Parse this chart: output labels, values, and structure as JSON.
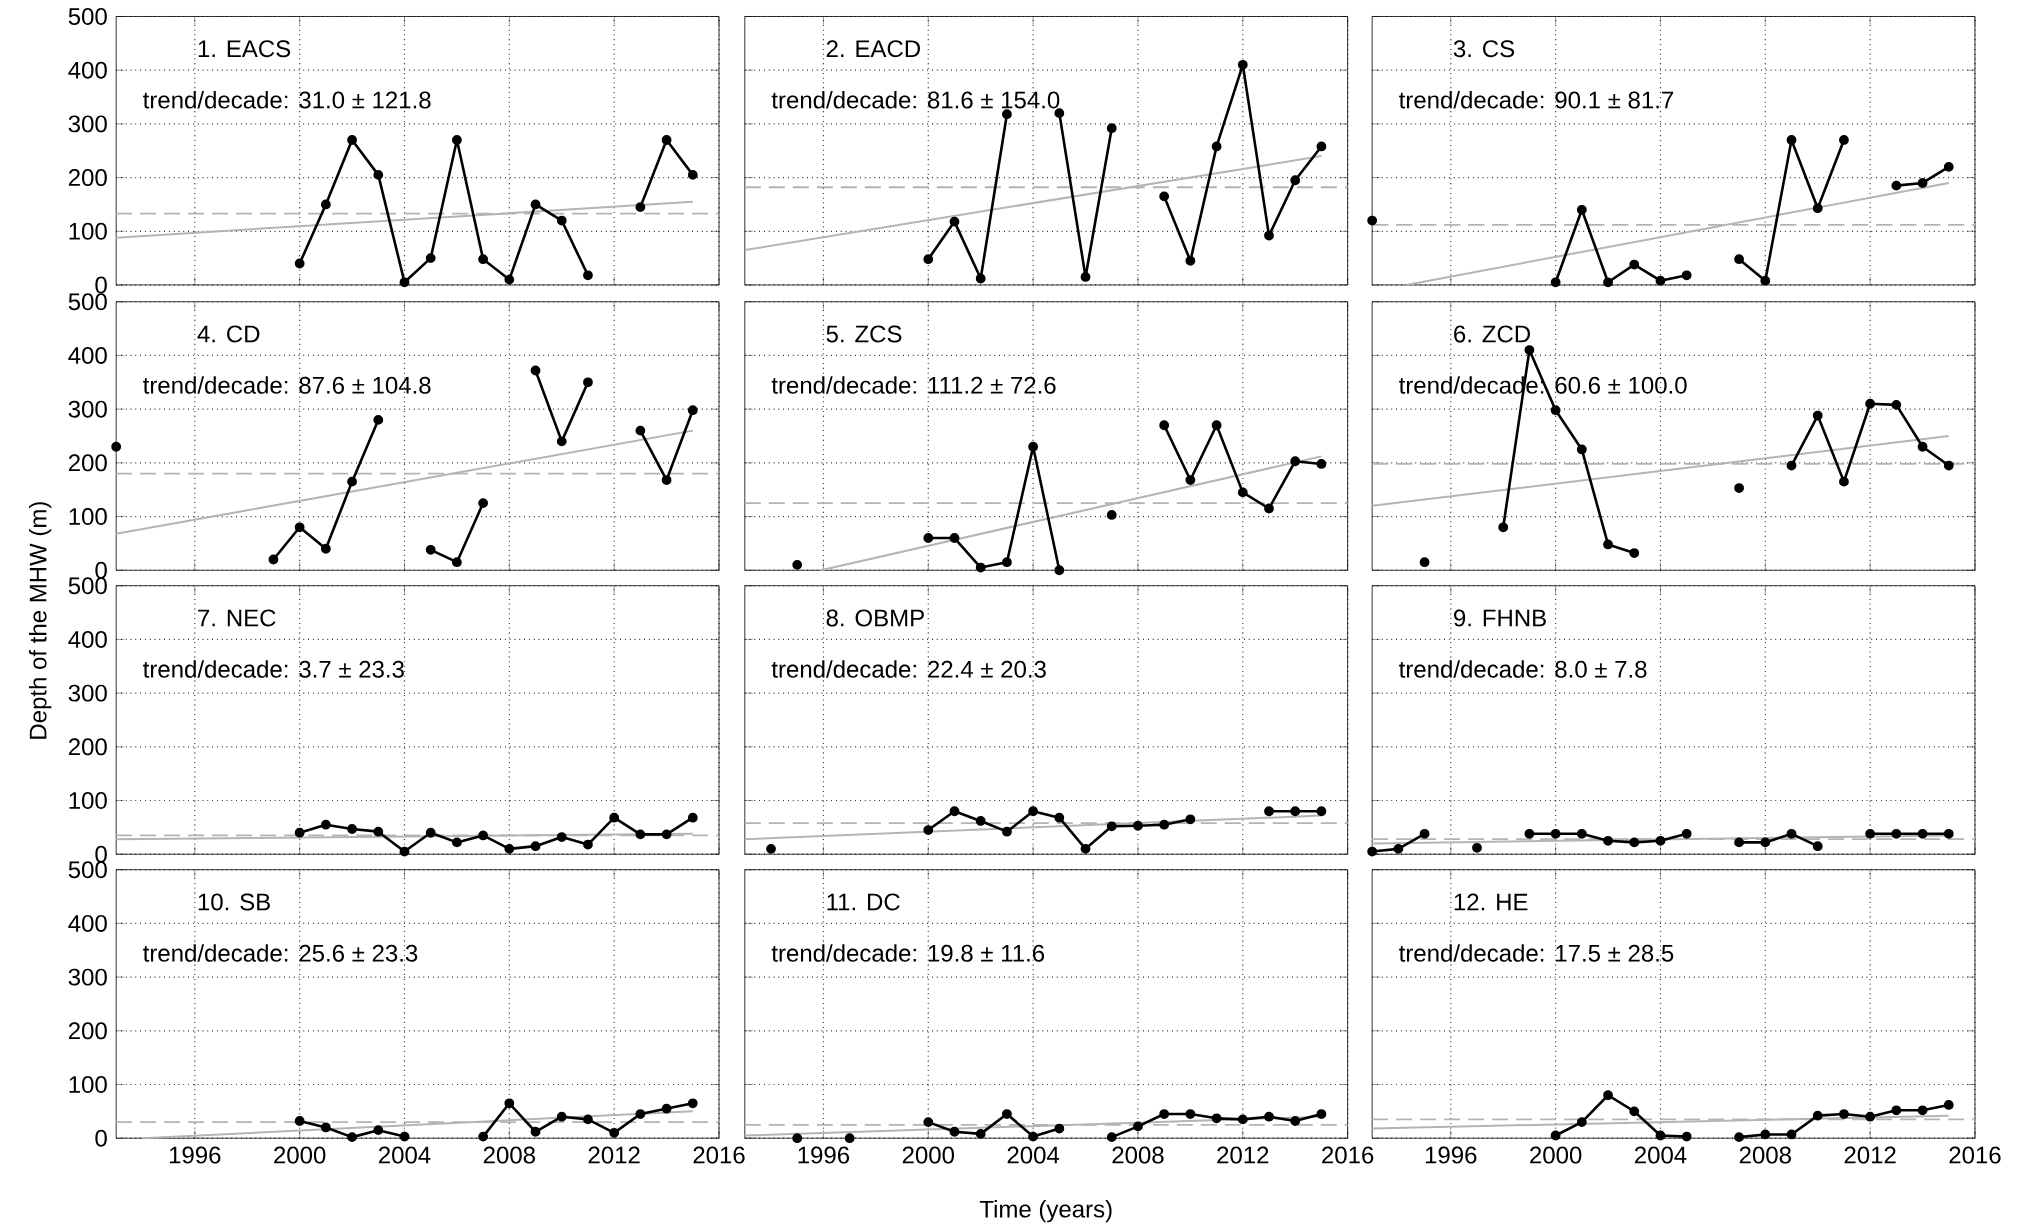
{
  "chart_data": [
    {
      "type": "line",
      "annotations": [
        "1. EACS",
        "trend/decade: 31.0 ± 121.8"
      ],
      "series": [
        {
          "color": "#000000",
          "x": [
            2000,
            2001,
            2002,
            2003,
            2004,
            2005,
            2006,
            2007,
            2008,
            2009,
            2010,
            2011,
            2012,
            2013,
            2014,
            2015
          ],
          "values": [
            40,
            150,
            270,
            205,
            5,
            50,
            270,
            48,
            10,
            150,
            120,
            18,
            null,
            145,
            270,
            205
          ]
        },
        {
          "type": "line",
          "marker": "none",
          "color": "#b4b4b4",
          "x": [
            1993,
            2015
          ],
          "values": [
            88,
            155
          ]
        }
      ],
      "ref_lines": [
        {
          "axis": "y",
          "value": 133,
          "color": "#b4b4b4",
          "line_style": "dashed"
        }
      ],
      "xlim": [
        1993,
        2016
      ],
      "ylim": [
        0,
        500
      ],
      "xticks": [
        1996,
        2000,
        2004,
        2008,
        2012,
        2016
      ],
      "yticks": [
        0,
        100,
        200,
        300,
        400,
        500
      ],
      "grid": true,
      "marker": "circle",
      "tick_labels": "y"
    },
    {
      "type": "line",
      "annotations": [
        "2. EACD",
        "trend/decade: 81.6 ± 154.0"
      ],
      "series": [
        {
          "color": "#000000",
          "x": [
            2000,
            2001,
            2002,
            2003,
            2004,
            2005,
            2006,
            2007,
            2008,
            2009,
            2010,
            2011,
            2012,
            2013,
            2014,
            2015
          ],
          "values": [
            48,
            118,
            12,
            318,
            null,
            320,
            15,
            292,
            null,
            165,
            45,
            258,
            410,
            92,
            195,
            258
          ]
        },
        {
          "type": "line",
          "marker": "none",
          "color": "#b4b4b4",
          "x": [
            1993,
            2015
          ],
          "values": [
            65,
            240
          ]
        }
      ],
      "ref_lines": [
        {
          "axis": "y",
          "value": 182,
          "color": "#b4b4b4",
          "line_style": "dashed"
        }
      ],
      "xlim": [
        1993,
        2016
      ],
      "ylim": [
        0,
        500
      ],
      "xticks": [
        1996,
        2000,
        2004,
        2008,
        2012,
        2016
      ],
      "yticks": [
        0,
        100,
        200,
        300,
        400,
        500
      ],
      "grid": true,
      "marker": "circle",
      "tick_labels": false
    },
    {
      "type": "line",
      "annotations": [
        "3. CS",
        "trend/decade: 90.1 ± 81.7"
      ],
      "series": [
        {
          "color": "#000000",
          "x": [
            1993,
            1999,
            2000,
            2001,
            2002,
            2003,
            2004,
            2005,
            2006,
            2007,
            2008,
            2009,
            2010,
            2011,
            2012,
            2013,
            2014,
            2015
          ],
          "values": [
            120,
            null,
            5,
            140,
            5,
            38,
            8,
            18,
            null,
            48,
            8,
            270,
            143,
            270,
            null,
            185,
            190,
            220
          ]
        },
        {
          "type": "line",
          "marker": "none",
          "color": "#b4b4b4",
          "x": [
            1994.3,
            2015
          ],
          "values": [
            0,
            190
          ]
        }
      ],
      "ref_lines": [
        {
          "axis": "y",
          "value": 112,
          "color": "#b4b4b4",
          "line_style": "dashed"
        }
      ],
      "xlim": [
        1993,
        2016
      ],
      "ylim": [
        0,
        500
      ],
      "xticks": [
        1996,
        2000,
        2004,
        2008,
        2012,
        2016
      ],
      "yticks": [
        0,
        100,
        200,
        300,
        400,
        500
      ],
      "grid": true,
      "marker": "circle",
      "tick_labels": false
    },
    {
      "type": "line",
      "annotations": [
        "4. CD",
        "trend/decade: 87.6 ± 104.8"
      ],
      "series": [
        {
          "color": "#000000",
          "x": [
            1993,
            1998,
            1999,
            2000,
            2001,
            2002,
            2003,
            2004,
            2005,
            2006,
            2007,
            2008,
            2009,
            2010,
            2011,
            2012,
            2013,
            2014,
            2015
          ],
          "values": [
            230,
            null,
            20,
            80,
            40,
            165,
            280,
            null,
            38,
            15,
            125,
            null,
            372,
            240,
            350,
            null,
            260,
            168,
            298
          ]
        },
        {
          "type": "line",
          "marker": "none",
          "color": "#b4b4b4",
          "x": [
            1993,
            2015
          ],
          "values": [
            68,
            260
          ]
        }
      ],
      "ref_lines": [
        {
          "axis": "y",
          "value": 180,
          "color": "#b4b4b4",
          "line_style": "dashed"
        }
      ],
      "xlim": [
        1993,
        2016
      ],
      "ylim": [
        0,
        500
      ],
      "xticks": [
        1996,
        2000,
        2004,
        2008,
        2012,
        2016
      ],
      "yticks": [
        0,
        100,
        200,
        300,
        400,
        500
      ],
      "grid": true,
      "marker": "circle",
      "tick_labels": "y"
    },
    {
      "type": "line",
      "annotations": [
        "5. ZCS",
        "trend/decade: 111.2 ± 72.6"
      ],
      "series": [
        {
          "color": "#000000",
          "x": [
            1995,
            1999,
            2000,
            2001,
            2002,
            2003,
            2004,
            2005,
            2006,
            2007,
            2008,
            2009,
            2010,
            2011,
            2012,
            2013,
            2014,
            2015
          ],
          "values": [
            10,
            null,
            60,
            60,
            5,
            15,
            230,
            0,
            null,
            103,
            null,
            270,
            168,
            270,
            145,
            115,
            203,
            198
          ]
        },
        {
          "type": "line",
          "marker": "none",
          "color": "#b4b4b4",
          "x": [
            1995.9,
            2015
          ],
          "values": [
            0,
            212
          ]
        }
      ],
      "ref_lines": [
        {
          "axis": "y",
          "value": 125,
          "color": "#b4b4b4",
          "line_style": "dashed"
        }
      ],
      "xlim": [
        1993,
        2016
      ],
      "ylim": [
        0,
        500
      ],
      "xticks": [
        1996,
        2000,
        2004,
        2008,
        2012,
        2016
      ],
      "yticks": [
        0,
        100,
        200,
        300,
        400,
        500
      ],
      "grid": true,
      "marker": "circle",
      "tick_labels": false
    },
    {
      "type": "line",
      "annotations": [
        "6. ZCD",
        "trend/decade: 60.6 ± 100.0"
      ],
      "series": [
        {
          "color": "#000000",
          "x": [
            1995,
            1997,
            1998,
            1999,
            2000,
            2001,
            2002,
            2003,
            2004,
            2007,
            2008,
            2009,
            2010,
            2011,
            2012,
            2013,
            2014,
            2015
          ],
          "values": [
            15,
            null,
            80,
            410,
            298,
            225,
            48,
            32,
            null,
            153,
            null,
            195,
            288,
            165,
            310,
            308,
            230,
            195
          ]
        },
        {
          "type": "line",
          "marker": "none",
          "color": "#b4b4b4",
          "x": [
            1993,
            2015
          ],
          "values": [
            120,
            250
          ]
        }
      ],
      "ref_lines": [
        {
          "axis": "y",
          "value": 198,
          "color": "#b4b4b4",
          "line_style": "dashed"
        }
      ],
      "xlim": [
        1993,
        2016
      ],
      "ylim": [
        0,
        500
      ],
      "xticks": [
        1996,
        2000,
        2004,
        2008,
        2012,
        2016
      ],
      "yticks": [
        0,
        100,
        200,
        300,
        400,
        500
      ],
      "grid": true,
      "marker": "circle",
      "tick_labels": false
    },
    {
      "type": "line",
      "annotations": [
        "7. NEC",
        "trend/decade: 3.7 ± 23.3"
      ],
      "ylabel": "Depth of the MHW (m)",
      "series": [
        {
          "color": "#000000",
          "x": [
            2000,
            2001,
            2002,
            2003,
            2004,
            2005,
            2006,
            2007,
            2008,
            2009,
            2010,
            2011,
            2012,
            2013,
            2014,
            2015
          ],
          "values": [
            40,
            55,
            47,
            42,
            5,
            40,
            22,
            35,
            10,
            15,
            32,
            18,
            68,
            37,
            37,
            68
          ]
        },
        {
          "type": "line",
          "marker": "none",
          "color": "#b4b4b4",
          "x": [
            1993,
            2015
          ],
          "values": [
            28,
            38
          ]
        }
      ],
      "ref_lines": [
        {
          "axis": "y",
          "value": 35,
          "color": "#b4b4b4",
          "line_style": "dashed"
        }
      ],
      "xlim": [
        1993,
        2016
      ],
      "ylim": [
        0,
        500
      ],
      "xticks": [
        1996,
        2000,
        2004,
        2008,
        2012,
        2016
      ],
      "yticks": [
        0,
        100,
        200,
        300,
        400,
        500
      ],
      "grid": true,
      "marker": "circle",
      "tick_labels": "y"
    },
    {
      "type": "line",
      "annotations": [
        "8. OBMP",
        "trend/decade: 22.4 ± 20.3"
      ],
      "series": [
        {
          "color": "#000000",
          "x": [
            1994,
            1999,
            2000,
            2001,
            2002,
            2003,
            2004,
            2005,
            2006,
            2007,
            2008,
            2009,
            2010,
            2011,
            2013,
            2014,
            2015
          ],
          "values": [
            10,
            null,
            45,
            80,
            62,
            42,
            80,
            68,
            10,
            52,
            53,
            55,
            65,
            null,
            80,
            80,
            80
          ]
        },
        {
          "type": "line",
          "marker": "none",
          "color": "#b4b4b4",
          "x": [
            1993,
            2015
          ],
          "values": [
            28,
            72
          ]
        }
      ],
      "ref_lines": [
        {
          "axis": "y",
          "value": 58,
          "color": "#b4b4b4",
          "line_style": "dashed"
        }
      ],
      "xlim": [
        1993,
        2016
      ],
      "ylim": [
        0,
        500
      ],
      "xticks": [
        1996,
        2000,
        2004,
        2008,
        2012,
        2016
      ],
      "yticks": [
        0,
        100,
        200,
        300,
        400,
        500
      ],
      "grid": true,
      "marker": "circle",
      "tick_labels": false
    },
    {
      "type": "line",
      "annotations": [
        "9. FHNB",
        "trend/decade: 8.0 ± 7.8"
      ],
      "series": [
        {
          "color": "#000000",
          "x": [
            1993,
            1994,
            1995,
            1996,
            1997,
            1998,
            1999,
            2000,
            2001,
            2002,
            2003,
            2004,
            2005,
            2006,
            2007,
            2008,
            2009,
            2010,
            2011,
            2012,
            2013,
            2014,
            2015
          ],
          "values": [
            5,
            10,
            38,
            null,
            12,
            null,
            38,
            38,
            38,
            25,
            22,
            25,
            38,
            null,
            22,
            22,
            38,
            15,
            null,
            38,
            38,
            38,
            38
          ]
        },
        {
          "type": "line",
          "marker": "none",
          "color": "#b4b4b4",
          "x": [
            1993,
            2015
          ],
          "values": [
            20,
            35
          ]
        }
      ],
      "ref_lines": [
        {
          "axis": "y",
          "value": 28,
          "color": "#b4b4b4",
          "line_style": "dashed"
        }
      ],
      "xlim": [
        1993,
        2016
      ],
      "ylim": [
        0,
        500
      ],
      "xticks": [
        1996,
        2000,
        2004,
        2008,
        2012,
        2016
      ],
      "yticks": [
        0,
        100,
        200,
        300,
        400,
        500
      ],
      "grid": true,
      "marker": "circle",
      "tick_labels": false
    },
    {
      "type": "line",
      "annotations": [
        "10. SB",
        "trend/decade: 25.6 ± 23.3"
      ],
      "series": [
        {
          "color": "#000000",
          "x": [
            2000,
            2001,
            2002,
            2003,
            2004,
            2005,
            2007,
            2008,
            2009,
            2010,
            2011,
            2012,
            2013,
            2014,
            2015
          ],
          "values": [
            32,
            20,
            2,
            15,
            3,
            null,
            3,
            65,
            12,
            40,
            35,
            10,
            45,
            55,
            65
          ]
        },
        {
          "type": "line",
          "marker": "none",
          "color": "#b4b4b4",
          "x": [
            1994,
            2015
          ],
          "values": [
            0,
            50
          ]
        }
      ],
      "ref_lines": [
        {
          "axis": "y",
          "value": 30,
          "color": "#b4b4b4",
          "line_style": "dashed"
        }
      ],
      "xlim": [
        1993,
        2016
      ],
      "ylim": [
        0,
        500
      ],
      "xticks": [
        1996,
        2000,
        2004,
        2008,
        2012,
        2016
      ],
      "yticks": [
        0,
        100,
        200,
        300,
        400,
        500
      ],
      "grid": true,
      "marker": "circle"
    },
    {
      "type": "line",
      "annotations": [
        "11. DC",
        "trend/decade: 19.8 ± 11.6"
      ],
      "xlabel": "Time (years)",
      "series": [
        {
          "color": "#000000",
          "x": [
            1995,
            1996,
            1997,
            1999,
            2000,
            2001,
            2002,
            2003,
            2004,
            2005,
            2006,
            2007,
            2008,
            2009,
            2010,
            2011,
            2012,
            2013,
            2014,
            2015
          ],
          "values": [
            0,
            null,
            0,
            null,
            30,
            12,
            8,
            45,
            3,
            18,
            null,
            2,
            22,
            45,
            45,
            37,
            35,
            40,
            32,
            45
          ]
        },
        {
          "type": "line",
          "marker": "none",
          "color": "#b4b4b4",
          "x": [
            1993,
            2015
          ],
          "values": [
            5,
            40
          ]
        }
      ],
      "ref_lines": [
        {
          "axis": "y",
          "value": 25,
          "color": "#b4b4b4",
          "line_style": "dashed"
        }
      ],
      "xlim": [
        1993,
        2016
      ],
      "ylim": [
        0,
        500
      ],
      "xticks": [
        1996,
        2000,
        2004,
        2008,
        2012,
        2016
      ],
      "yticks": [
        0,
        100,
        200,
        300,
        400,
        500
      ],
      "grid": true,
      "marker": "circle",
      "tick_labels": "x"
    },
    {
      "type": "line",
      "annotations": [
        "12. HE",
        "trend/decade: 17.5 ± 28.5"
      ],
      "series": [
        {
          "color": "#000000",
          "x": [
            2000,
            2001,
            2002,
            2003,
            2004,
            2005,
            2006,
            2007,
            2008,
            2009,
            2010,
            2011,
            2012,
            2013,
            2014,
            2015
          ],
          "values": [
            5,
            30,
            80,
            50,
            5,
            3,
            null,
            2,
            7,
            7,
            42,
            45,
            40,
            52,
            52,
            62
          ]
        },
        {
          "type": "line",
          "marker": "none",
          "color": "#b4b4b4",
          "x": [
            1993,
            2015
          ],
          "values": [
            18,
            42
          ]
        }
      ],
      "ref_lines": [
        {
          "axis": "y",
          "value": 35,
          "color": "#b4b4b4",
          "line_style": "dashed"
        }
      ],
      "xlim": [
        1993,
        2016
      ],
      "ylim": [
        0,
        500
      ],
      "xticks": [
        1996,
        2000,
        2004,
        2008,
        2012,
        2016
      ],
      "yticks": [
        0,
        100,
        200,
        300,
        400,
        500
      ],
      "grid": true,
      "marker": "circle",
      "tick_labels": "x"
    }
  ]
}
